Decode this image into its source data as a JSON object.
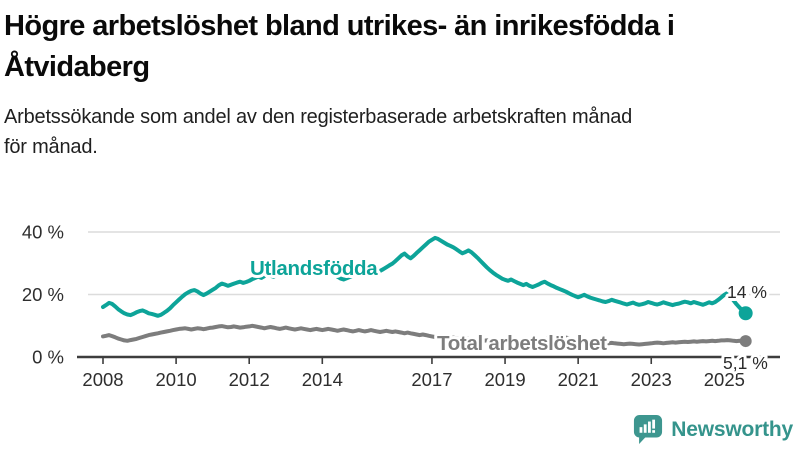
{
  "header": {
    "title_lines": [
      "Högre arbetslöshet bland utrikes- än inrikesfödda i",
      "Åtvidaberg"
    ],
    "subtitle_lines": [
      "Arbetssökande som andel av den registerbaserade arbetskraften månad",
      "för månad."
    ]
  },
  "chart_data": {
    "type": "line",
    "x_start": "2008-01",
    "x_end": "2025-08",
    "x_interval": "monthly",
    "unit": "%",
    "ylim": [
      0,
      42
    ],
    "grid": "horizontal",
    "yticks": [
      {
        "label": "0 %",
        "value": 0
      },
      {
        "label": "20 %",
        "value": 20
      },
      {
        "label": "40 %",
        "value": 40
      }
    ],
    "xticks": [
      {
        "label": "2008",
        "year": 2008
      },
      {
        "label": "2010",
        "year": 2010
      },
      {
        "label": "2012",
        "year": 2012
      },
      {
        "label": "2014",
        "year": 2014
      },
      {
        "label": "2017",
        "year": 2017
      },
      {
        "label": "2019",
        "year": 2019
      },
      {
        "label": "2021",
        "year": 2021
      },
      {
        "label": "2023",
        "year": 2023
      },
      {
        "label": "2025",
        "year": 2025
      }
    ],
    "series": [
      {
        "name": "Utlandsfödda",
        "color": "#0da499",
        "end_label": "14 %",
        "end_value": 14,
        "values_by_year": {
          "2008": [
            16.0,
            16.6,
            17.3,
            17.0,
            16.2,
            15.3,
            14.6,
            14.0,
            13.6,
            13.4,
            13.8,
            14.3
          ],
          "2009": [
            14.7,
            14.9,
            14.5,
            14.0,
            13.8,
            13.5,
            13.2,
            13.5,
            14.1,
            14.8,
            15.6,
            16.6
          ],
          "2010": [
            17.5,
            18.4,
            19.3,
            20.1,
            20.7,
            21.2,
            21.4,
            21.0,
            20.3,
            19.8,
            20.3,
            20.9
          ],
          "2011": [
            21.5,
            22.1,
            22.9,
            23.5,
            23.2,
            22.8,
            23.1,
            23.5,
            23.8,
            24.1,
            23.7,
            24.0
          ],
          "2012": [
            24.4,
            24.9,
            25.3,
            25.7,
            25.3,
            25.9,
            26.4,
            26.0,
            25.7,
            26.2,
            26.7,
            27.1
          ],
          "2013": [
            27.5,
            28.0,
            28.4,
            28.7,
            28.4,
            28.9,
            29.2,
            28.7,
            28.2,
            27.8,
            28.1,
            28.5
          ],
          "2014": [
            28.7,
            28.2,
            27.6,
            27.0,
            26.3,
            25.7,
            25.1,
            24.8,
            25.2,
            25.6,
            26.0,
            26.4
          ],
          "2015": [
            26.8,
            27.3,
            27.7,
            27.3,
            26.9,
            27.4,
            27.0,
            27.6,
            28.1,
            28.7,
            29.3,
            29.9
          ],
          "2016": [
            30.7,
            31.6,
            32.5,
            33.1,
            32.2,
            31.6,
            32.4,
            33.3,
            34.2,
            35.1,
            36.0,
            36.9
          ],
          "2017": [
            37.5,
            38.1,
            37.8,
            37.2,
            36.6,
            36.0,
            35.6,
            35.1,
            34.5,
            33.8,
            33.2,
            33.6
          ],
          "2018": [
            34.1,
            33.5,
            32.6,
            31.7,
            30.7,
            29.7,
            28.7,
            27.8,
            27.0,
            26.3,
            25.7,
            25.1
          ],
          "2019": [
            24.7,
            24.4,
            24.8,
            24.3,
            23.8,
            23.4,
            23.0,
            23.4,
            22.8,
            22.4,
            22.8,
            23.2
          ],
          "2020": [
            23.7,
            24.1,
            23.5,
            23.0,
            22.6,
            22.1,
            21.7,
            21.3,
            20.9,
            20.4,
            19.9,
            19.5
          ],
          "2021": [
            19.1,
            19.5,
            19.9,
            19.4,
            19.0,
            18.7,
            18.4,
            18.1,
            17.8,
            17.6,
            17.9,
            18.3
          ],
          "2022": [
            18.0,
            17.7,
            17.4,
            17.1,
            16.8,
            17.1,
            17.4,
            17.0,
            16.7,
            16.9,
            17.2,
            17.6
          ],
          "2023": [
            17.3,
            17.0,
            16.8,
            17.1,
            17.5,
            17.2,
            16.9,
            16.6,
            16.9,
            17.1,
            17.4,
            17.7
          ],
          "2024": [
            17.5,
            17.2,
            17.6,
            17.3,
            17.0,
            16.7,
            17.1,
            17.5,
            17.2,
            17.6,
            18.3,
            19.1
          ],
          "2025": [
            19.9,
            20.5,
            19.3,
            18.1,
            16.9,
            15.8,
            14.8,
            14.0
          ]
        }
      },
      {
        "name": "Total arbetslöshet",
        "color": "#7d7d7d",
        "end_label": "5,1 %",
        "end_value": 5.1,
        "values_by_year": {
          "2008": [
            6.6,
            6.8,
            7.0,
            6.7,
            6.3,
            5.9,
            5.6,
            5.3,
            5.2,
            5.4,
            5.6,
            5.8
          ],
          "2009": [
            6.1,
            6.4,
            6.7,
            7.0,
            7.2,
            7.4,
            7.6,
            7.8,
            8.0,
            8.2,
            8.4,
            8.6
          ],
          "2010": [
            8.8,
            9.0,
            9.1,
            9.2,
            9.0,
            8.8,
            9.0,
            9.2,
            9.1,
            8.9,
            9.1,
            9.3
          ],
          "2011": [
            9.4,
            9.6,
            9.8,
            9.9,
            9.7,
            9.5,
            9.6,
            9.8,
            9.6,
            9.4,
            9.5,
            9.7
          ],
          "2012": [
            9.8,
            10.0,
            9.8,
            9.6,
            9.4,
            9.2,
            9.4,
            9.6,
            9.4,
            9.2,
            9.0,
            9.2
          ],
          "2013": [
            9.4,
            9.2,
            9.0,
            8.8,
            9.0,
            9.2,
            9.0,
            8.8,
            8.6,
            8.8,
            9.0,
            8.8
          ],
          "2014": [
            8.6,
            8.8,
            9.0,
            8.8,
            8.6,
            8.4,
            8.6,
            8.8,
            8.6,
            8.4,
            8.2,
            8.4
          ],
          "2015": [
            8.6,
            8.4,
            8.2,
            8.4,
            8.6,
            8.4,
            8.2,
            8.0,
            8.2,
            8.4,
            8.2,
            8.0
          ],
          "2016": [
            8.2,
            8.0,
            7.8,
            7.6,
            7.8,
            7.6,
            7.4,
            7.2,
            7.0,
            7.2,
            7.0,
            6.8
          ],
          "2017": [
            6.6,
            6.4,
            6.2,
            6.3,
            6.1,
            5.9,
            6.0,
            6.2,
            6.0,
            5.8,
            5.9,
            6.1
          ],
          "2018": [
            5.9,
            5.7,
            5.5,
            5.6,
            5.4,
            5.2,
            5.3,
            5.5,
            5.3,
            5.1,
            5.2,
            5.4
          ],
          "2019": [
            5.2,
            5.0,
            5.1,
            5.3,
            5.1,
            4.9,
            5.0,
            5.2,
            5.0,
            4.8,
            4.9,
            5.1
          ],
          "2020": [
            5.3,
            5.6,
            6.0,
            6.4,
            6.7,
            6.8,
            6.6,
            6.4,
            6.2,
            6.0,
            5.8,
            5.6
          ],
          "2021": [
            5.4,
            5.2,
            5.0,
            4.8,
            4.6,
            4.5,
            4.6,
            4.5,
            4.4,
            4.3,
            4.4,
            4.5
          ],
          "2022": [
            4.4,
            4.3,
            4.2,
            4.1,
            4.2,
            4.3,
            4.2,
            4.1,
            4.0,
            4.1,
            4.2,
            4.3
          ],
          "2023": [
            4.4,
            4.5,
            4.6,
            4.5,
            4.4,
            4.5,
            4.6,
            4.7,
            4.6,
            4.7,
            4.8,
            4.9
          ],
          "2024": [
            4.8,
            4.9,
            5.0,
            4.9,
            5.0,
            5.1,
            5.0,
            5.1,
            5.2,
            5.1,
            5.2,
            5.3
          ],
          "2025": [
            5.3,
            5.4,
            5.3,
            5.2,
            5.1,
            5.2,
            5.1,
            5.1
          ]
        }
      }
    ]
  },
  "footer": {
    "brand": "Newsworthy",
    "brand_color": "#35948c"
  },
  "colors": {
    "axis": "#3d3d3d",
    "grid": "#dcdcdc",
    "tick_text": "#2e2e2e",
    "end_label_text": "#2b2b2b"
  }
}
